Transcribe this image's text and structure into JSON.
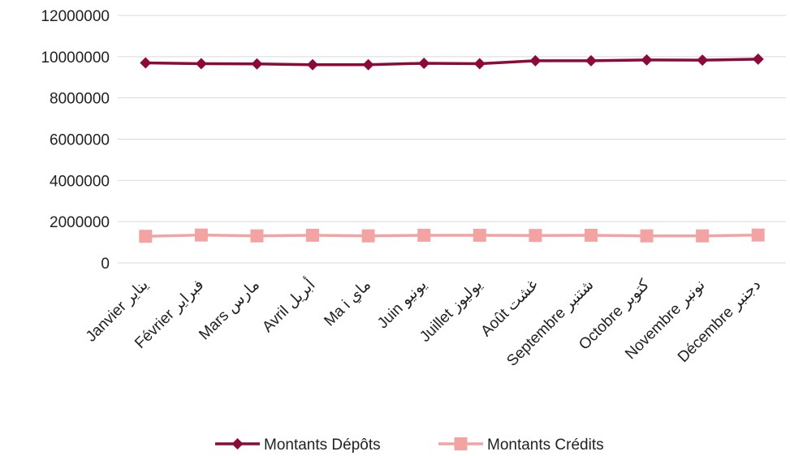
{
  "chart_data": {
    "type": "line",
    "categories": [
      "Janvier يناير",
      "Février فبراير",
      "Mars مارس",
      "Avril أبريل",
      "Ma i ماي",
      "Juin يونيو",
      "Juillet يوليوز",
      "Août غشت",
      "Septembre شتنبر",
      "Octobre كتوبر",
      "Novembre نونبر",
      "Décembre دجنبر"
    ],
    "series": [
      {
        "name": "Montants Dépôts",
        "color": "#8b0a3a",
        "marker": "diamond",
        "values": [
          9700000,
          9660000,
          9650000,
          9610000,
          9610000,
          9680000,
          9660000,
          9800000,
          9800000,
          9840000,
          9830000,
          9880000
        ]
      },
      {
        "name": "Montants Crédits",
        "color": "#f4a3a3",
        "marker": "square",
        "values": [
          1290000,
          1350000,
          1310000,
          1340000,
          1310000,
          1340000,
          1340000,
          1330000,
          1340000,
          1310000,
          1310000,
          1350000
        ]
      }
    ],
    "y_ticks": [
      "0",
      "2000000",
      "4000000",
      "6000000",
      "8000000",
      "10000000",
      "12000000"
    ],
    "ylim": [
      0,
      12000000
    ],
    "grid": true,
    "legend_position": "bottom"
  }
}
